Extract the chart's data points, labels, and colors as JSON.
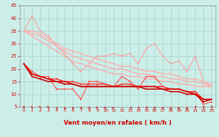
{
  "title": "",
  "xlabel": "Vent moyen/en rafales ( km/h )",
  "background_color": "#cceee8",
  "grid_color": "#aad4ce",
  "x": [
    0,
    1,
    2,
    3,
    4,
    5,
    6,
    7,
    8,
    9,
    10,
    11,
    12,
    13,
    14,
    15,
    16,
    17,
    18,
    19,
    20,
    21,
    22,
    23
  ],
  "ylim": [
    5,
    45
  ],
  "yticks": [
    5,
    10,
    15,
    20,
    25,
    30,
    35,
    40,
    45
  ],
  "series": [
    {
      "y": [
        35,
        41,
        35,
        33,
        29,
        26,
        22,
        19,
        22,
        25,
        25,
        26,
        25,
        26,
        22,
        28,
        30,
        25,
        22,
        23,
        19,
        25,
        15,
        13
      ],
      "color": "#ff9999",
      "lw": 0.8,
      "ms": 2.0
    },
    {
      "y": [
        35,
        35,
        34,
        32,
        30,
        28,
        27,
        26,
        25,
        24,
        23,
        22,
        21,
        21,
        20,
        19,
        19,
        18,
        18,
        17,
        16,
        16,
        15,
        14
      ],
      "color": "#ffaaaa",
      "lw": 1.0,
      "ms": 2.0
    },
    {
      "y": [
        35,
        34,
        33,
        31,
        29,
        27,
        25,
        24,
        23,
        22,
        21,
        20,
        20,
        19,
        18,
        18,
        17,
        17,
        16,
        16,
        15,
        15,
        14,
        13
      ],
      "color": "#ffaaaa",
      "lw": 1.0,
      "ms": 2.0
    },
    {
      "y": [
        35,
        33,
        31,
        29,
        27,
        25,
        23,
        22,
        21,
        20,
        19,
        18,
        18,
        17,
        17,
        16,
        16,
        15,
        15,
        14,
        14,
        13,
        13,
        13
      ],
      "color": "#ffaaaa",
      "lw": 1.0,
      "ms": 2.0
    },
    {
      "y": [
        22,
        19,
        17,
        17,
        12,
        12,
        12,
        8,
        15,
        15,
        14,
        13,
        17,
        15,
        12,
        17,
        17,
        13,
        12,
        12,
        11,
        11,
        6,
        7
      ],
      "color": "#ff4444",
      "lw": 0.8,
      "ms": 2.0
    },
    {
      "y": [
        22,
        18,
        17,
        16,
        16,
        15,
        15,
        14,
        14,
        14,
        14,
        13,
        14,
        14,
        13,
        13,
        13,
        13,
        12,
        12,
        11,
        11,
        8,
        8
      ],
      "color": "#ff2222",
      "lw": 1.0,
      "ms": 2.0
    },
    {
      "y": [
        22,
        18,
        17,
        16,
        15,
        15,
        14,
        13,
        13,
        13,
        13,
        13,
        13,
        13,
        13,
        13,
        13,
        12,
        12,
        12,
        11,
        10,
        8,
        8
      ],
      "color": "#dd0000",
      "lw": 1.2,
      "ms": 2.0
    },
    {
      "y": [
        22,
        17,
        16,
        15,
        15,
        14,
        14,
        13,
        13,
        13,
        13,
        13,
        13,
        13,
        13,
        12,
        12,
        12,
        11,
        11,
        10,
        10,
        7,
        8
      ],
      "color": "#cc0000",
      "lw": 1.2,
      "ms": 2.0
    }
  ]
}
